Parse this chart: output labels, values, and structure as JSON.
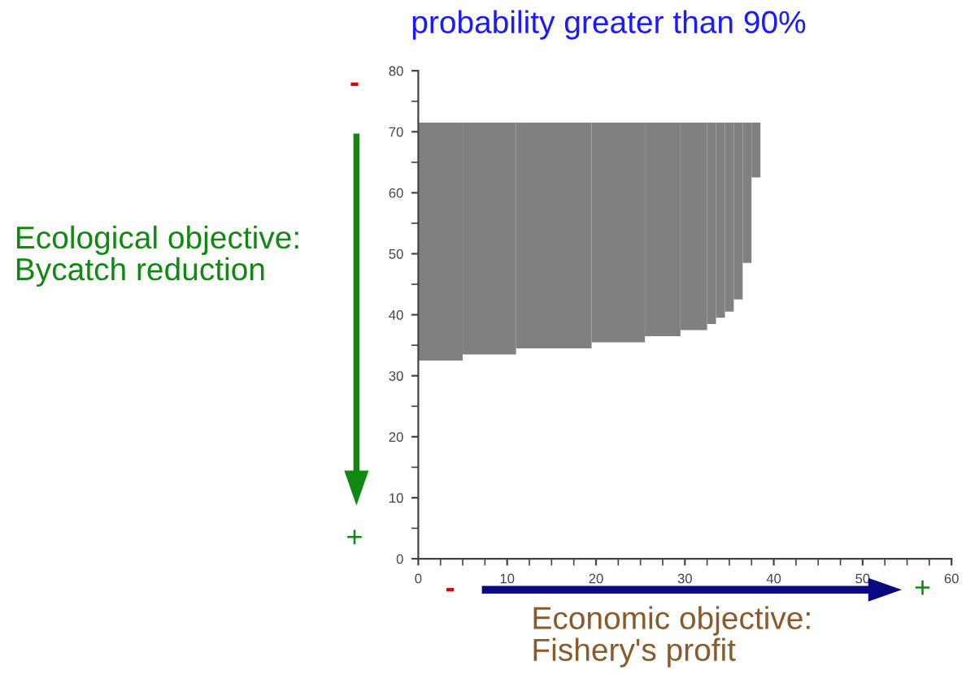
{
  "chart_data": {
    "type": "bar",
    "title": "probability greater than 90%",
    "x": [
      2.5,
      8,
      15.25,
      22.5,
      27.5,
      31,
      33,
      34,
      35,
      36,
      37,
      38
    ],
    "base": [
      32.5,
      33.5,
      34.5,
      35.5,
      36.5,
      37.5,
      38.5,
      39.5,
      40.5,
      42.5,
      48.5,
      62.5
    ],
    "values": [
      39,
      38,
      37,
      36,
      35,
      34,
      33,
      32,
      31,
      29,
      23,
      9
    ],
    "colors": [
      "#808080",
      "#808080",
      "#808080",
      "#808080",
      "#808080",
      "#808080",
      "#808080",
      "#808080",
      "#808080",
      "#808080",
      "#808080",
      "#808080"
    ],
    "xlim": [
      0,
      60
    ],
    "xticks": [
      0,
      10,
      20,
      30,
      40,
      50,
      60
    ],
    "ylim": [
      0,
      80
    ],
    "yticks": [
      0,
      10,
      20,
      30,
      40,
      50,
      60,
      70,
      80
    ],
    "grid": false,
    "legend": false,
    "annotations": [
      "Ecological objective:\nBycatch reduction",
      "-",
      "+",
      "Economic objective:\nFishery's profit",
      "-",
      "+"
    ]
  }
}
